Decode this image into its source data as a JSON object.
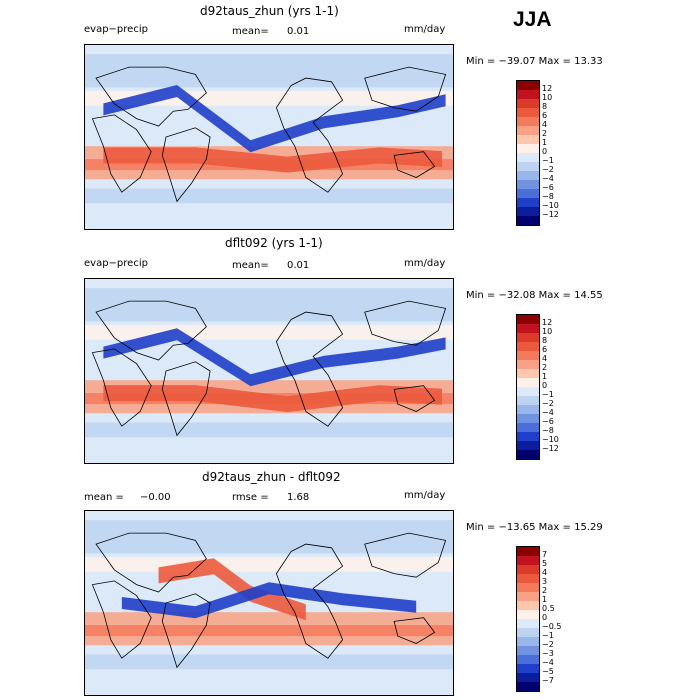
{
  "season": "JJA",
  "panels": [
    {
      "title": "d92taus_zhun (yrs 1-1)",
      "left_label": "evap−precip",
      "stat_label": "mean=",
      "stat_value": "0.01",
      "units": "mm/day",
      "minmax": "Min = −39.07 Max =   13.33",
      "levels": [
        "12",
        "10",
        "8",
        "6",
        "4",
        "2",
        "1",
        "0",
        "−1",
        "−2",
        "−4",
        "−6",
        "−8",
        "−10",
        "−12"
      ],
      "colors": [
        "#8b0000",
        "#c1121f",
        "#dc3a2a",
        "#ec5a3d",
        "#f47a5c",
        "#f9a184",
        "#fdc7ae",
        "#fff1ea",
        "#dce9f9",
        "#bcd3f1",
        "#98b6ea",
        "#6f93e0",
        "#4a6fd9",
        "#1f3fc9",
        "#0b1e9e",
        "#00006e"
      ],
      "colorbar_label": "",
      "fields": [
        {
          "kind": "blue",
          "pts": [
            [
              0.05,
              0.35
            ],
            [
              0.25,
              0.25
            ],
            [
              0.45,
              0.55
            ],
            [
              0.65,
              0.42
            ],
            [
              0.85,
              0.36
            ],
            [
              0.98,
              0.3
            ]
          ]
        },
        {
          "kind": "red",
          "pts": [
            [
              0.05,
              0.6
            ],
            [
              0.3,
              0.6
            ],
            [
              0.55,
              0.65
            ],
            [
              0.8,
              0.6
            ],
            [
              0.97,
              0.62
            ]
          ]
        }
      ]
    },
    {
      "title": "dflt092 (yrs 1-1)",
      "left_label": "evap−precip",
      "stat_label": "mean=",
      "stat_value": "0.01",
      "units": "mm/day",
      "minmax": "Min = −32.08 Max =   14.55",
      "levels": [
        "12",
        "10",
        "8",
        "6",
        "4",
        "2",
        "1",
        "0",
        "−1",
        "−2",
        "−4",
        "−6",
        "−8",
        "−10",
        "−12"
      ],
      "colors": [
        "#8b0000",
        "#c1121f",
        "#dc3a2a",
        "#ec5a3d",
        "#f47a5c",
        "#f9a184",
        "#fdc7ae",
        "#fff1ea",
        "#dce9f9",
        "#bcd3f1",
        "#98b6ea",
        "#6f93e0",
        "#4a6fd9",
        "#1f3fc9",
        "#0b1e9e",
        "#00006e"
      ],
      "colorbar_label": "",
      "fields": [
        {
          "kind": "blue",
          "pts": [
            [
              0.05,
              0.4
            ],
            [
              0.25,
              0.3
            ],
            [
              0.45,
              0.55
            ],
            [
              0.65,
              0.45
            ],
            [
              0.85,
              0.4
            ],
            [
              0.98,
              0.35
            ]
          ]
        },
        {
          "kind": "red",
          "pts": [
            [
              0.05,
              0.62
            ],
            [
              0.3,
              0.62
            ],
            [
              0.55,
              0.68
            ],
            [
              0.8,
              0.62
            ],
            [
              0.97,
              0.64
            ]
          ]
        }
      ]
    },
    {
      "title": "d92taus_zhun - dflt092",
      "left_label": "mean =",
      "left_value": "−0.00",
      "stat_label": "rmse =",
      "stat_value": "1.68",
      "units": "mm/day",
      "minmax": "Min = −13.65 Max =   15.29",
      "levels": [
        "7",
        "5",
        "4",
        "3",
        "2",
        "1",
        "0.5",
        "0",
        "−0.5",
        "−1",
        "−2",
        "−3",
        "−4",
        "−5",
        "−7"
      ],
      "colors": [
        "#8b0000",
        "#c1121f",
        "#dc3a2a",
        "#ec5a3d",
        "#f47a5c",
        "#f9a184",
        "#fdc7ae",
        "#fff1ea",
        "#dce9f9",
        "#bcd3f1",
        "#98b6ea",
        "#6f93e0",
        "#4a6fd9",
        "#1f3fc9",
        "#0b1e9e",
        "#00006e"
      ],
      "colorbar_label": "",
      "fields": [
        {
          "kind": "red",
          "pts": [
            [
              0.2,
              0.35
            ],
            [
              0.35,
              0.3
            ],
            [
              0.45,
              0.45
            ],
            [
              0.6,
              0.55
            ]
          ]
        },
        {
          "kind": "blue",
          "pts": [
            [
              0.1,
              0.5
            ],
            [
              0.3,
              0.55
            ],
            [
              0.5,
              0.42
            ],
            [
              0.7,
              0.48
            ],
            [
              0.9,
              0.52
            ]
          ]
        }
      ]
    }
  ]
}
